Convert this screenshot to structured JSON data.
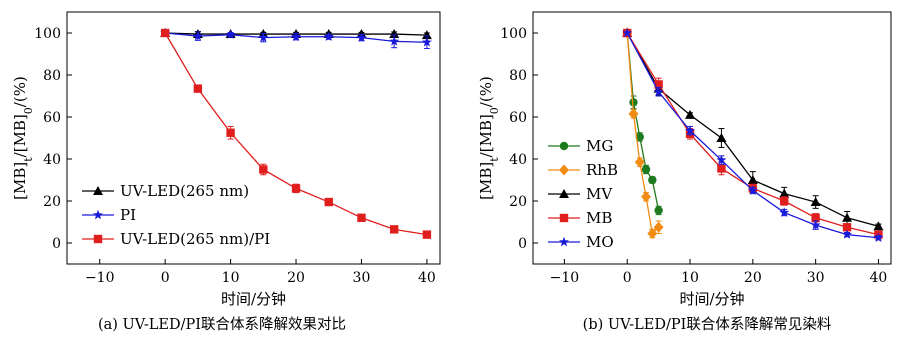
{
  "chart_data": [
    {
      "type": "line",
      "caption": "(a)  UV-LED/PI联合体系降解效果对比",
      "xlabel": "时间/分钟",
      "ylabel_main": "[MB]",
      "ylabel_sub1": "t",
      "ylabel_mid": "/[MB]",
      "ylabel_sub2": "0",
      "ylabel_tail": "/(%)",
      "xlim": [
        -15,
        42
      ],
      "ylim": [
        -10,
        110
      ],
      "xticks": [
        -10,
        0,
        10,
        20,
        30,
        40
      ],
      "yticks": [
        0,
        20,
        40,
        60,
        80,
        100
      ],
      "xtick_labels": [
        "−10",
        "0",
        "10",
        "20",
        "30",
        "40"
      ],
      "ytick_labels": [
        "0",
        "20",
        "40",
        "60",
        "80",
        "100"
      ],
      "legend_position": "bottom-left",
      "series": [
        {
          "name": "UV-LED(265 nm)",
          "color": "#000000",
          "marker": "triangle",
          "x": [
            0,
            5,
            10,
            15,
            20,
            25,
            30,
            35,
            40
          ],
          "y": [
            100,
            99.5,
            99.5,
            99.5,
            99.5,
            99.5,
            99.5,
            99.5,
            99
          ],
          "err": [
            0,
            1.2,
            0.5,
            0.8,
            0.8,
            0.8,
            0.8,
            1,
            1
          ]
        },
        {
          "name": "PI",
          "color": "#1a1adb",
          "marker": "star",
          "x": [
            0,
            5,
            10,
            15,
            20,
            25,
            30,
            35,
            40
          ],
          "y": [
            100,
            98.5,
            99.2,
            97.8,
            98.2,
            98.2,
            97.8,
            96,
            95.6
          ],
          "err": [
            0,
            2,
            1,
            2,
            1.5,
            1.2,
            1.5,
            3,
            3
          ]
        },
        {
          "name": "UV-LED(265 nm)/PI",
          "color": "#e01e1e",
          "marker": "square",
          "x": [
            0,
            5,
            10,
            15,
            20,
            25,
            30,
            35,
            40
          ],
          "y": [
            100,
            73.5,
            52.5,
            35,
            26,
            19.5,
            12,
            6.5,
            4
          ],
          "err": [
            0,
            1,
            3,
            2.5,
            2,
            1,
            1,
            1,
            1
          ]
        }
      ]
    },
    {
      "type": "line",
      "caption": "(b)  UV-LED/PI联合体系降解常见染料",
      "xlabel": "时间/分钟",
      "ylabel_main": "[MB]",
      "ylabel_sub1": "t",
      "ylabel_mid": "/[MB]",
      "ylabel_sub2": "0",
      "ylabel_tail": "/(%)",
      "xlim": [
        -15,
        42
      ],
      "ylim": [
        -10,
        110
      ],
      "xticks": [
        -10,
        0,
        10,
        20,
        30,
        40
      ],
      "yticks": [
        0,
        20,
        40,
        60,
        80,
        100
      ],
      "xtick_labels": [
        "−10",
        "0",
        "10",
        "20",
        "30",
        "40"
      ],
      "ytick_labels": [
        "0",
        "20",
        "40",
        "60",
        "80",
        "100"
      ],
      "legend_position": "bottom-left",
      "series": [
        {
          "name": "MG",
          "color": "#1e7a1e",
          "marker": "circle",
          "x": [
            0,
            1,
            2,
            3,
            4,
            5
          ],
          "y": [
            100,
            67,
            50.5,
            35,
            30,
            15.5
          ],
          "err": [
            0,
            3,
            2,
            2,
            1.5,
            2
          ]
        },
        {
          "name": "RhB",
          "color": "#f08c14",
          "marker": "diamond",
          "x": [
            0,
            1,
            2,
            3,
            4,
            5
          ],
          "y": [
            100,
            61.5,
            38.5,
            22,
            4.5,
            7.5
          ],
          "err": [
            0,
            2,
            2,
            2,
            2,
            3
          ]
        },
        {
          "name": "MV",
          "color": "#000000",
          "marker": "triangle",
          "x": [
            0,
            5,
            10,
            15,
            20,
            25,
            30,
            35,
            40
          ],
          "y": [
            100,
            73.5,
            61,
            50,
            30,
            23.5,
            19.5,
            12,
            8
          ],
          "err": [
            0,
            3,
            1,
            4.5,
            4,
            3,
            3,
            3,
            1
          ]
        },
        {
          "name": "MB",
          "color": "#e01e1e",
          "marker": "square",
          "x": [
            0,
            5,
            10,
            15,
            20,
            25,
            30,
            35,
            40
          ],
          "y": [
            100,
            75.5,
            52,
            35.5,
            26,
            20,
            12,
            7.5,
            4
          ],
          "err": [
            0,
            3,
            2.5,
            3,
            2,
            2,
            2,
            1.5,
            1
          ]
        },
        {
          "name": "MO",
          "color": "#1a1adb",
          "marker": "star",
          "x": [
            0,
            5,
            10,
            15,
            20,
            25,
            30,
            35,
            40
          ],
          "y": [
            100,
            72,
            53.5,
            39.5,
            25,
            14.5,
            8.5,
            4,
            2.5
          ],
          "err": [
            0,
            2,
            2,
            2,
            1.5,
            1.5,
            2,
            1,
            1
          ]
        }
      ]
    }
  ]
}
